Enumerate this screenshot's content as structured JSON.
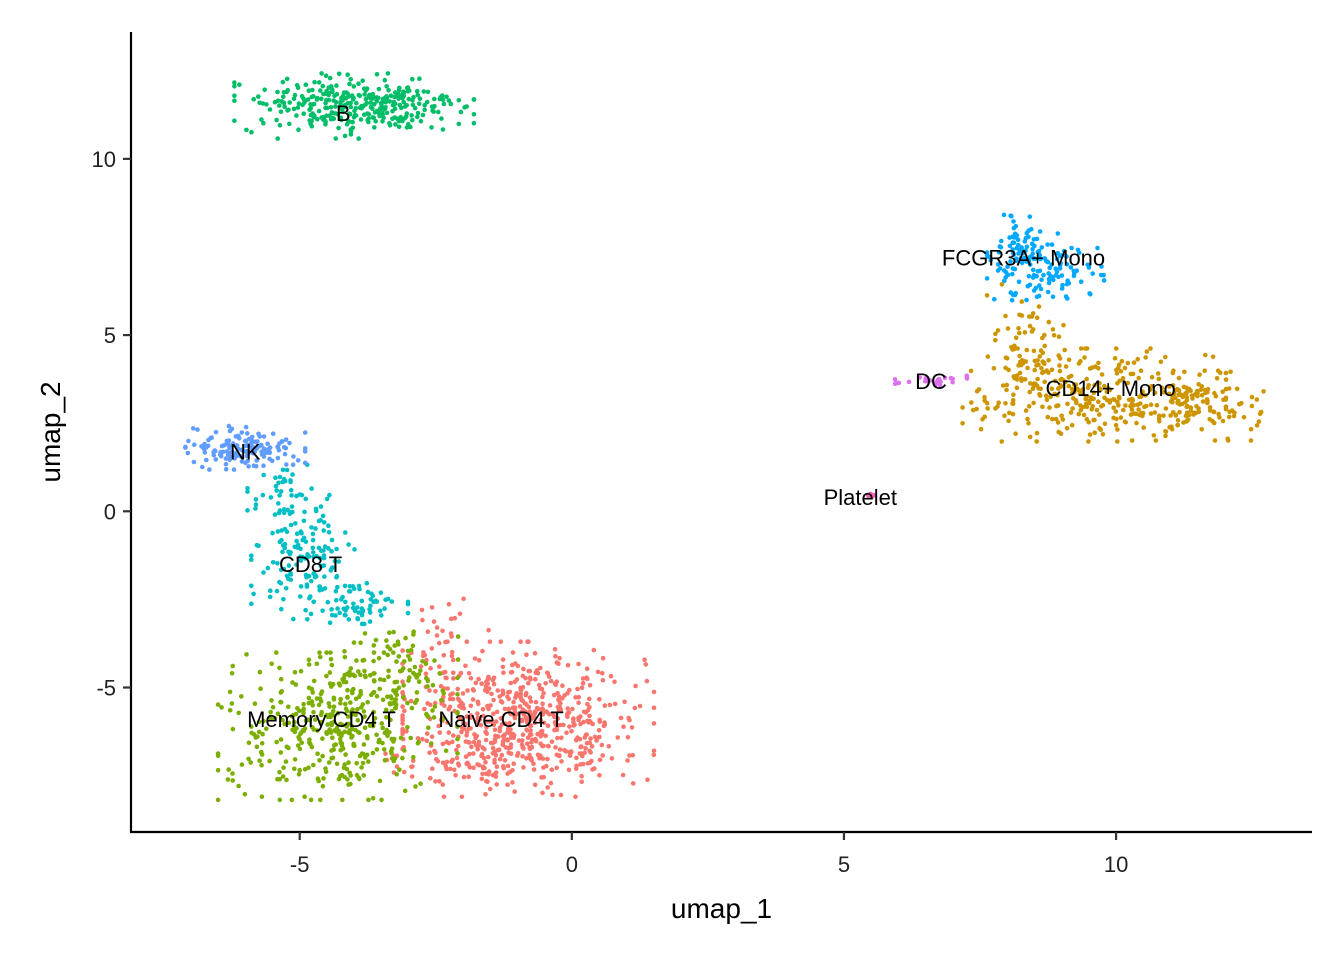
{
  "chart_data": {
    "type": "scatter",
    "title": "",
    "xlabel": "umap_1",
    "ylabel": "umap_2",
    "xlim": [
      -8.1,
      13.6
    ],
    "ylim": [
      -9.1,
      13.6
    ],
    "xticks": [
      -5,
      0,
      5,
      10
    ],
    "xtick_labels": [
      "-5",
      "0",
      "5",
      "10"
    ],
    "yticks": [
      -5,
      0,
      5,
      10
    ],
    "ytick_labels": [
      "-5",
      "0",
      "5",
      "10"
    ],
    "grid": false,
    "legend": "none",
    "series": [
      {
        "name": "Naive CD4 T",
        "color": "#F8766D",
        "count": 700,
        "label_at": [
          -1.3,
          -5.9
        ],
        "regions": [
          {
            "center": [
              -0.8,
              -5.9
            ],
            "spread": [
              1.05,
              1.0
            ],
            "weight": 0.8
          },
          {
            "center": [
              -2.3,
              -4.4
            ],
            "spread": [
              0.35,
              1.0
            ],
            "weight": 0.1
          },
          {
            "center": [
              -1.8,
              -7.1
            ],
            "spread": [
              0.9,
              0.35
            ],
            "weight": 0.1
          }
        ]
      },
      {
        "name": "CD14+ Mono",
        "color": "#CD9600",
        "count": 480,
        "label_at": [
          9.9,
          3.5
        ],
        "regions": [
          {
            "center": [
              9.6,
              3.3
            ],
            "spread": [
              1.1,
              0.6
            ],
            "weight": 0.6
          },
          {
            "center": [
              11.5,
              3.0
            ],
            "spread": [
              0.55,
              0.45
            ],
            "weight": 0.25
          },
          {
            "center": [
              8.4,
              4.6
            ],
            "spread": [
              0.35,
              0.9
            ],
            "weight": 0.15
          }
        ]
      },
      {
        "name": "Memory CD4 T",
        "color": "#7CAE00",
        "count": 480,
        "label_at": [
          -4.6,
          -5.9
        ],
        "regions": [
          {
            "center": [
              -4.3,
              -6.1
            ],
            "spread": [
              1.0,
              0.95
            ],
            "weight": 0.85
          },
          {
            "center": [
              -3.3,
              -4.4
            ],
            "spread": [
              0.55,
              0.6
            ],
            "weight": 0.15
          }
        ]
      },
      {
        "name": "B",
        "color": "#00BE67",
        "count": 340,
        "label_at": [
          -4.2,
          11.3
        ],
        "regions": [
          {
            "center": [
              -4.0,
              11.5
            ],
            "spread": [
              1.0,
              0.42
            ],
            "weight": 1.0
          }
        ]
      },
      {
        "name": "CD8 T",
        "color": "#00BFC4",
        "count": 240,
        "label_at": [
          -4.8,
          -1.5
        ],
        "regions": [
          {
            "center": [
              -4.9,
              -1.3
            ],
            "spread": [
              0.45,
              0.8
            ],
            "weight": 0.6
          },
          {
            "center": [
              -4.0,
              -2.7
            ],
            "spread": [
              0.45,
              0.3
            ],
            "weight": 0.25
          },
          {
            "center": [
              -5.3,
              0.6
            ],
            "spread": [
              0.3,
              0.45
            ],
            "weight": 0.15
          }
        ]
      },
      {
        "name": "FCGR3A+ Mono",
        "color": "#00A9FF",
        "count": 170,
        "label_at": [
          8.3,
          7.2
        ],
        "regions": [
          {
            "center": [
              8.4,
              7.2
            ],
            "spread": [
              0.35,
              0.55
            ],
            "weight": 0.7
          },
          {
            "center": [
              8.9,
              6.7
            ],
            "spread": [
              0.4,
              0.35
            ],
            "weight": 0.3
          }
        ]
      },
      {
        "name": "NK",
        "color": "#619CFF",
        "count": 150,
        "label_at": [
          -6.0,
          1.7
        ],
        "regions": [
          {
            "center": [
              -6.0,
              1.8
            ],
            "spread": [
              0.5,
              0.28
            ],
            "weight": 1.0
          }
        ]
      },
      {
        "name": "DC",
        "color": "#DE6FF0",
        "count": 25,
        "label_at": [
          6.6,
          3.7
        ],
        "regions": [
          {
            "center": [
              6.6,
              3.7
            ],
            "spread": [
              0.3,
              0.07
            ],
            "weight": 1.0
          }
        ]
      },
      {
        "name": "Platelet",
        "color": "#F563B8",
        "count": 8,
        "label_at": [
          5.3,
          0.4
        ],
        "regions": [
          {
            "center": [
              5.5,
              0.45
            ],
            "spread": [
              0.06,
              0.05
            ],
            "weight": 1.0
          }
        ]
      }
    ]
  }
}
